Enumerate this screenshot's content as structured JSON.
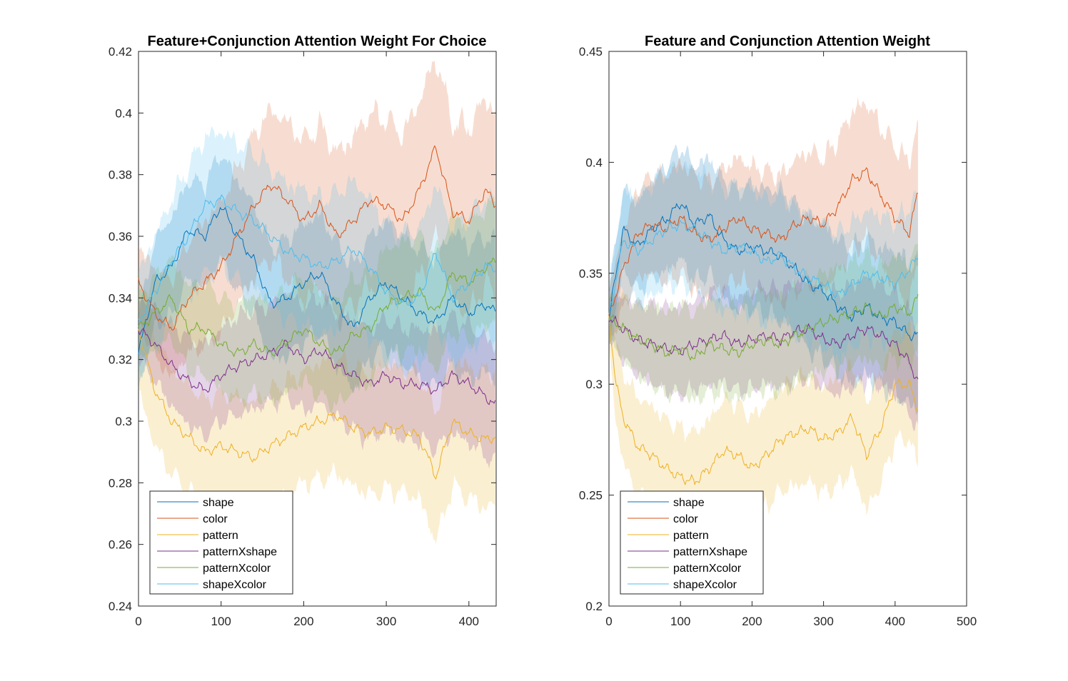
{
  "chart_data": [
    {
      "type": "line",
      "title": "Feature+Conjunction Attention Weight For Choice",
      "xlabel": "",
      "ylabel": "",
      "xlim": [
        0,
        433
      ],
      "ylim": [
        0.24,
        0.42
      ],
      "xticks": [
        "0",
        "100",
        "200",
        "300",
        "400"
      ],
      "yticks": [
        "0.24",
        "0.26",
        "0.28",
        "0.3",
        "0.32",
        "0.34",
        "0.36",
        "0.38",
        "0.4",
        "0.42"
      ],
      "grid": false,
      "legend_position": "bottom-left",
      "shaded_band": "mean ± error",
      "series": [
        {
          "name": "shape",
          "color": "#0072BD",
          "x": [
            0,
            20,
            40,
            60,
            80,
            100,
            120,
            140,
            160,
            180,
            200,
            220,
            240,
            260,
            280,
            300,
            320,
            340,
            360,
            380,
            400,
            420,
            433
          ],
          "mean": [
            0.322,
            0.345,
            0.35,
            0.362,
            0.36,
            0.37,
            0.36,
            0.352,
            0.338,
            0.34,
            0.345,
            0.348,
            0.338,
            0.33,
            0.34,
            0.345,
            0.34,
            0.335,
            0.332,
            0.34,
            0.335,
            0.338,
            0.335
          ],
          "err": [
            0.012,
            0.014,
            0.016,
            0.016,
            0.017,
            0.017,
            0.018,
            0.018,
            0.018,
            0.019,
            0.019,
            0.019,
            0.02,
            0.02,
            0.02,
            0.02,
            0.021,
            0.021,
            0.021,
            0.022,
            0.022,
            0.022,
            0.022
          ]
        },
        {
          "name": "color",
          "color": "#D95319",
          "x": [
            0,
            20,
            40,
            60,
            80,
            100,
            120,
            140,
            160,
            180,
            200,
            220,
            240,
            260,
            280,
            300,
            320,
            340,
            360,
            380,
            400,
            420,
            433
          ],
          "mean": [
            0.345,
            0.335,
            0.33,
            0.34,
            0.345,
            0.35,
            0.36,
            0.37,
            0.377,
            0.372,
            0.365,
            0.37,
            0.36,
            0.365,
            0.372,
            0.37,
            0.365,
            0.375,
            0.389,
            0.368,
            0.365,
            0.375,
            0.37
          ],
          "err": [
            0.012,
            0.014,
            0.016,
            0.018,
            0.02,
            0.021,
            0.022,
            0.023,
            0.024,
            0.025,
            0.026,
            0.026,
            0.027,
            0.027,
            0.028,
            0.028,
            0.028,
            0.029,
            0.029,
            0.029,
            0.03,
            0.03,
            0.03
          ]
        },
        {
          "name": "pattern",
          "color": "#EDB120",
          "x": [
            0,
            20,
            40,
            60,
            80,
            100,
            120,
            140,
            160,
            180,
            200,
            220,
            240,
            260,
            280,
            300,
            320,
            340,
            360,
            380,
            400,
            420,
            433
          ],
          "mean": [
            0.33,
            0.31,
            0.3,
            0.295,
            0.29,
            0.292,
            0.29,
            0.288,
            0.292,
            0.295,
            0.298,
            0.3,
            0.302,
            0.298,
            0.296,
            0.298,
            0.297,
            0.295,
            0.282,
            0.3,
            0.296,
            0.294,
            0.295
          ],
          "err": [
            0.02,
            0.018,
            0.017,
            0.017,
            0.017,
            0.017,
            0.018,
            0.018,
            0.018,
            0.018,
            0.018,
            0.019,
            0.019,
            0.019,
            0.02,
            0.02,
            0.02,
            0.02,
            0.021,
            0.021,
            0.021,
            0.022,
            0.022
          ]
        },
        {
          "name": "patternXshape",
          "color": "#7E2F8E",
          "x": [
            0,
            20,
            40,
            60,
            80,
            100,
            120,
            140,
            160,
            180,
            200,
            220,
            240,
            260,
            280,
            300,
            320,
            340,
            360,
            380,
            400,
            420,
            433
          ],
          "mean": [
            0.33,
            0.325,
            0.318,
            0.313,
            0.31,
            0.315,
            0.318,
            0.32,
            0.322,
            0.325,
            0.32,
            0.323,
            0.318,
            0.315,
            0.312,
            0.315,
            0.312,
            0.312,
            0.31,
            0.315,
            0.312,
            0.308,
            0.305
          ],
          "err": [
            0.01,
            0.012,
            0.013,
            0.014,
            0.015,
            0.015,
            0.016,
            0.016,
            0.016,
            0.017,
            0.017,
            0.017,
            0.017,
            0.018,
            0.018,
            0.018,
            0.018,
            0.018,
            0.019,
            0.019,
            0.019,
            0.019,
            0.019
          ]
        },
        {
          "name": "patternXcolor",
          "color": "#77AC30",
          "x": [
            0,
            20,
            40,
            60,
            80,
            100,
            120,
            140,
            160,
            180,
            200,
            220,
            240,
            260,
            280,
            300,
            320,
            340,
            360,
            380,
            400,
            420,
            433
          ],
          "mean": [
            0.33,
            0.335,
            0.34,
            0.33,
            0.33,
            0.325,
            0.322,
            0.325,
            0.322,
            0.326,
            0.33,
            0.325,
            0.322,
            0.328,
            0.33,
            0.338,
            0.34,
            0.342,
            0.335,
            0.348,
            0.345,
            0.35,
            0.352
          ],
          "err": [
            0.01,
            0.012,
            0.013,
            0.014,
            0.015,
            0.015,
            0.016,
            0.016,
            0.016,
            0.017,
            0.017,
            0.017,
            0.017,
            0.018,
            0.018,
            0.018,
            0.018,
            0.018,
            0.019,
            0.019,
            0.019,
            0.019,
            0.019
          ]
        },
        {
          "name": "shapeXcolor",
          "color": "#4DBEEE",
          "x": [
            0,
            20,
            40,
            60,
            80,
            100,
            120,
            140,
            160,
            180,
            200,
            220,
            240,
            260,
            280,
            300,
            320,
            340,
            360,
            380,
            400,
            420,
            433
          ],
          "mean": [
            0.332,
            0.342,
            0.352,
            0.36,
            0.37,
            0.372,
            0.368,
            0.365,
            0.36,
            0.355,
            0.353,
            0.35,
            0.352,
            0.356,
            0.35,
            0.342,
            0.338,
            0.34,
            0.355,
            0.34,
            0.345,
            0.35,
            0.35
          ],
          "err": [
            0.016,
            0.018,
            0.02,
            0.022,
            0.022,
            0.022,
            0.022,
            0.022,
            0.022,
            0.022,
            0.022,
            0.022,
            0.022,
            0.022,
            0.022,
            0.022,
            0.022,
            0.022,
            0.022,
            0.022,
            0.022,
            0.022,
            0.022
          ]
        }
      ]
    },
    {
      "type": "line",
      "title": "Feature and Conjunction Attention Weight",
      "xlabel": "",
      "ylabel": "",
      "xlim": [
        0,
        500
      ],
      "ylim": [
        0.2,
        0.45
      ],
      "xticks": [
        "0",
        "100",
        "200",
        "300",
        "400",
        "500"
      ],
      "yticks": [
        "0.2",
        "0.25",
        "0.3",
        "0.35",
        "0.4",
        "0.45"
      ],
      "grid": false,
      "legend_position": "bottom-left",
      "shaded_band": "mean ± error",
      "series": [
        {
          "name": "shape",
          "color": "#0072BD",
          "x": [
            0,
            20,
            40,
            60,
            80,
            100,
            120,
            140,
            160,
            180,
            200,
            220,
            240,
            260,
            280,
            300,
            320,
            340,
            360,
            380,
            400,
            420,
            433
          ],
          "mean": [
            0.33,
            0.37,
            0.362,
            0.37,
            0.374,
            0.382,
            0.372,
            0.376,
            0.365,
            0.36,
            0.362,
            0.36,
            0.358,
            0.352,
            0.345,
            0.342,
            0.335,
            0.33,
            0.335,
            0.33,
            0.328,
            0.322,
            0.322
          ],
          "err": [
            0.012,
            0.018,
            0.02,
            0.022,
            0.024,
            0.025,
            0.026,
            0.026,
            0.027,
            0.027,
            0.028,
            0.028,
            0.029,
            0.029,
            0.03,
            0.03,
            0.03,
            0.031,
            0.031,
            0.031,
            0.032,
            0.032,
            0.032
          ]
        },
        {
          "name": "color",
          "color": "#D95319",
          "x": [
            0,
            20,
            40,
            60,
            80,
            100,
            120,
            140,
            160,
            180,
            200,
            220,
            240,
            260,
            280,
            300,
            320,
            340,
            360,
            380,
            400,
            420,
            433
          ],
          "mean": [
            0.33,
            0.352,
            0.368,
            0.372,
            0.37,
            0.375,
            0.368,
            0.365,
            0.37,
            0.375,
            0.37,
            0.368,
            0.365,
            0.372,
            0.375,
            0.372,
            0.38,
            0.392,
            0.396,
            0.385,
            0.375,
            0.368,
            0.389
          ],
          "err": [
            0.012,
            0.018,
            0.02,
            0.022,
            0.024,
            0.025,
            0.026,
            0.026,
            0.027,
            0.027,
            0.028,
            0.028,
            0.029,
            0.029,
            0.03,
            0.03,
            0.03,
            0.031,
            0.031,
            0.031,
            0.032,
            0.032,
            0.032
          ]
        },
        {
          "name": "pattern",
          "color": "#EDB120",
          "x": [
            0,
            10,
            20,
            40,
            60,
            80,
            100,
            120,
            140,
            160,
            180,
            200,
            220,
            240,
            260,
            280,
            300,
            320,
            340,
            360,
            380,
            400,
            420,
            433
          ],
          "mean": [
            0.33,
            0.3,
            0.285,
            0.272,
            0.268,
            0.262,
            0.258,
            0.256,
            0.262,
            0.27,
            0.268,
            0.262,
            0.268,
            0.275,
            0.278,
            0.28,
            0.275,
            0.278,
            0.285,
            0.268,
            0.28,
            0.3,
            0.3,
            0.288
          ],
          "err": [
            0.012,
            0.018,
            0.02,
            0.022,
            0.022,
            0.022,
            0.022,
            0.022,
            0.022,
            0.023,
            0.023,
            0.023,
            0.023,
            0.023,
            0.024,
            0.024,
            0.024,
            0.024,
            0.024,
            0.025,
            0.025,
            0.025,
            0.025,
            0.025
          ]
        },
        {
          "name": "patternXshape",
          "color": "#7E2F8E",
          "x": [
            0,
            20,
            40,
            60,
            80,
            100,
            120,
            140,
            160,
            180,
            200,
            220,
            240,
            260,
            280,
            300,
            320,
            340,
            360,
            380,
            400,
            420,
            433
          ],
          "mean": [
            0.33,
            0.325,
            0.32,
            0.318,
            0.316,
            0.315,
            0.318,
            0.32,
            0.322,
            0.318,
            0.32,
            0.322,
            0.32,
            0.324,
            0.325,
            0.32,
            0.318,
            0.322,
            0.325,
            0.322,
            0.318,
            0.31,
            0.3
          ],
          "err": [
            0.01,
            0.014,
            0.016,
            0.018,
            0.019,
            0.02,
            0.02,
            0.021,
            0.021,
            0.021,
            0.022,
            0.022,
            0.022,
            0.022,
            0.022,
            0.022,
            0.023,
            0.023,
            0.023,
            0.023,
            0.023,
            0.023,
            0.023
          ]
        },
        {
          "name": "patternXcolor",
          "color": "#77AC30",
          "x": [
            0,
            20,
            40,
            60,
            80,
            100,
            120,
            140,
            160,
            180,
            200,
            220,
            240,
            260,
            280,
            300,
            320,
            340,
            360,
            380,
            400,
            420,
            433
          ],
          "mean": [
            0.33,
            0.325,
            0.32,
            0.318,
            0.314,
            0.316,
            0.312,
            0.318,
            0.316,
            0.314,
            0.318,
            0.32,
            0.318,
            0.322,
            0.325,
            0.328,
            0.33,
            0.332,
            0.335,
            0.33,
            0.335,
            0.332,
            0.34
          ],
          "err": [
            0.01,
            0.014,
            0.016,
            0.018,
            0.019,
            0.02,
            0.02,
            0.021,
            0.021,
            0.021,
            0.022,
            0.022,
            0.022,
            0.022,
            0.022,
            0.022,
            0.023,
            0.023,
            0.023,
            0.023,
            0.023,
            0.023,
            0.023
          ]
        },
        {
          "name": "shapeXcolor",
          "color": "#4DBEEE",
          "x": [
            0,
            20,
            40,
            60,
            80,
            100,
            120,
            140,
            160,
            180,
            200,
            220,
            240,
            260,
            280,
            300,
            320,
            340,
            360,
            380,
            400,
            420,
            433
          ],
          "mean": [
            0.33,
            0.365,
            0.36,
            0.365,
            0.37,
            0.372,
            0.37,
            0.365,
            0.36,
            0.362,
            0.36,
            0.355,
            0.358,
            0.352,
            0.348,
            0.345,
            0.34,
            0.345,
            0.35,
            0.348,
            0.345,
            0.352,
            0.358
          ],
          "err": [
            0.014,
            0.022,
            0.024,
            0.025,
            0.026,
            0.027,
            0.027,
            0.027,
            0.028,
            0.028,
            0.028,
            0.028,
            0.028,
            0.028,
            0.028,
            0.028,
            0.028,
            0.028,
            0.028,
            0.028,
            0.028,
            0.028,
            0.028
          ]
        }
      ]
    }
  ]
}
